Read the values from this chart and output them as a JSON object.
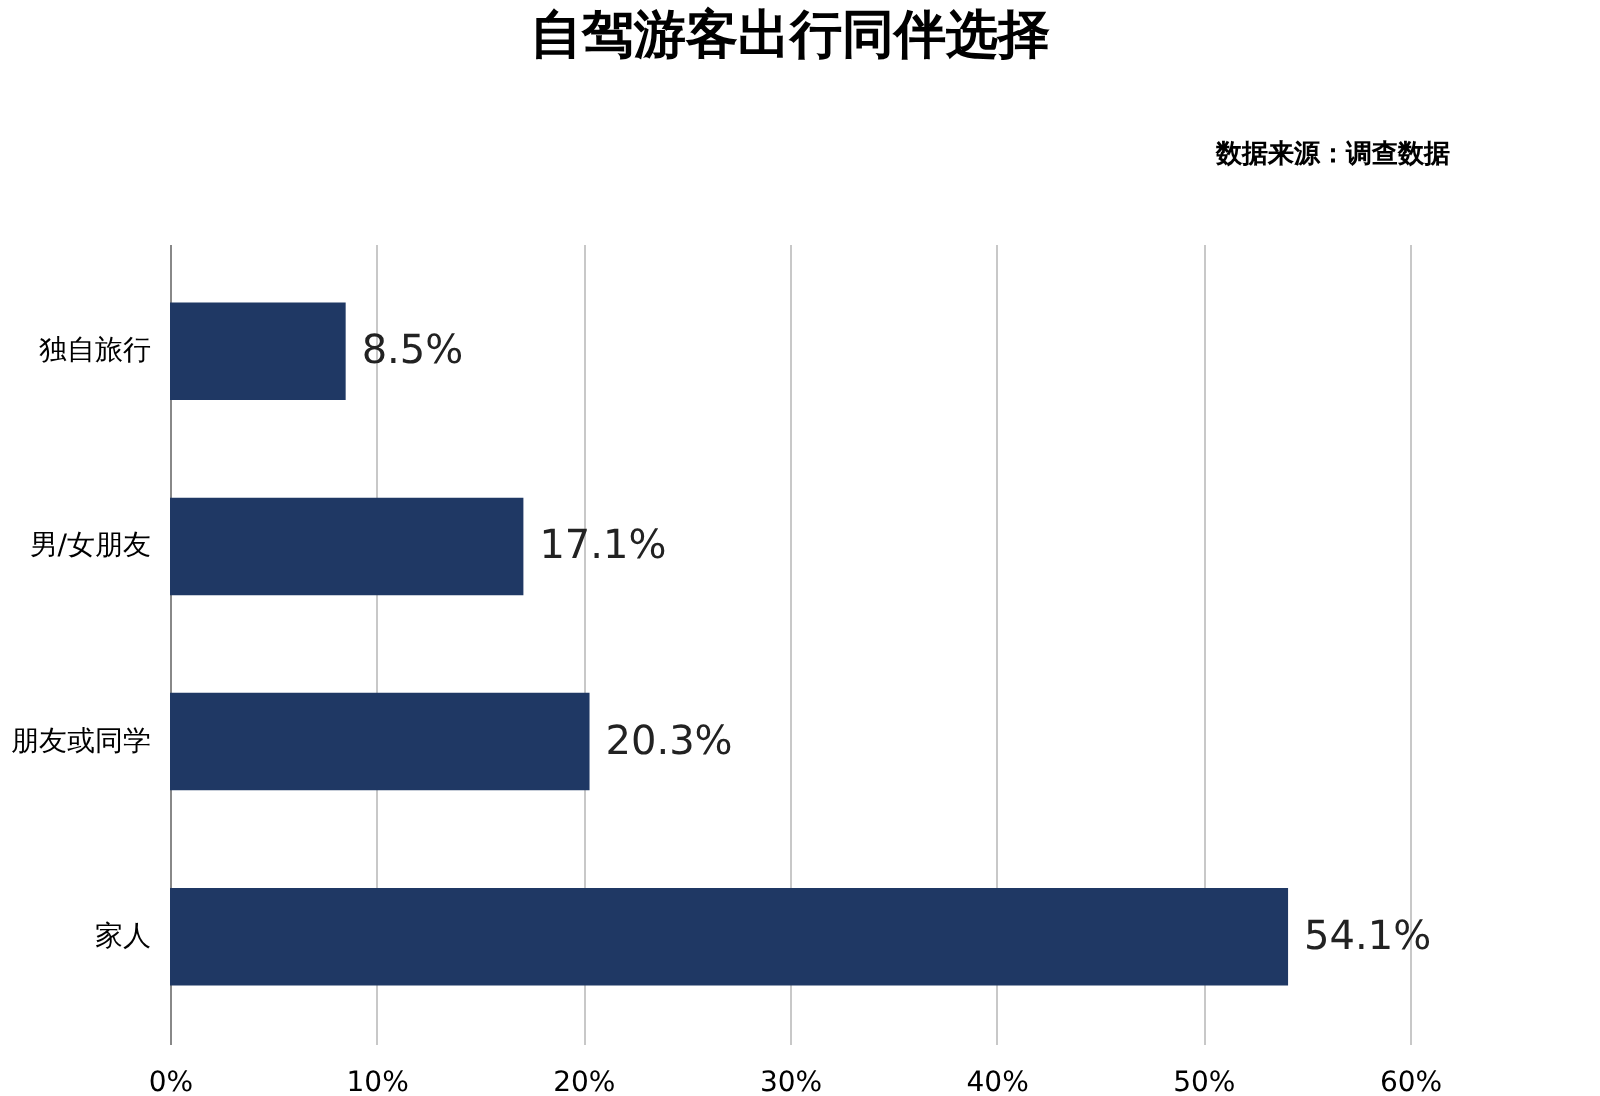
{
  "chart_data": {
    "type": "bar",
    "orientation": "horizontal",
    "title": "自驾游客出行同伴选择",
    "annotations": [
      "数据来源：调查数据"
    ],
    "categories": [
      "独自旅行",
      "男/女朋友",
      "朋友或同学",
      "家人"
    ],
    "series": [
      {
        "color": "#1f3864",
        "values": [
          8.5,
          17.1,
          20.3,
          54.1
        ]
      }
    ],
    "value_labels": [
      "8.5%",
      "17.1%",
      "20.3%",
      "54.1%"
    ],
    "xlim": [
      0,
      60
    ],
    "xticks": [
      {
        "value": 0,
        "label": "0%"
      },
      {
        "value": 10,
        "label": "10%"
      },
      {
        "value": 20,
        "label": "20%"
      },
      {
        "value": 30,
        "label": "30%"
      },
      {
        "value": 40,
        "label": "40%"
      },
      {
        "value": 50,
        "label": "50%"
      },
      {
        "value": 60,
        "label": "60%"
      }
    ],
    "grid": "x"
  }
}
